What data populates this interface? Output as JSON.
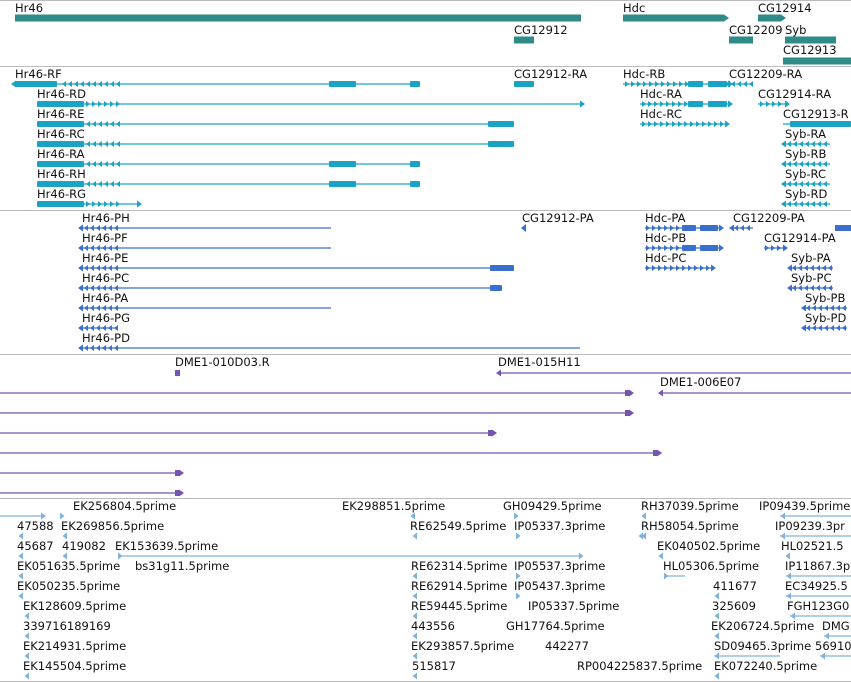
{
  "colors": {
    "gene": "#2e8b87",
    "transcript": "#1aa3c4",
    "protein": "#3a6fd0",
    "clone": "#7555b0",
    "est": "#7fb2df",
    "divider": "#bbbbbb"
  },
  "genes": [
    {
      "label": "Hr46"
    },
    {
      "label": "Hdc"
    },
    {
      "label": "CG12914"
    },
    {
      "label": "CG12912"
    },
    {
      "label": "CG12209"
    },
    {
      "label": "Syb"
    },
    {
      "label": "CG12913"
    }
  ],
  "transcripts": [
    {
      "label": "Hr46-RF"
    },
    {
      "label": "Hr46-RD"
    },
    {
      "label": "Hr46-RE"
    },
    {
      "label": "Hr46-RC"
    },
    {
      "label": "Hr46-RA"
    },
    {
      "label": "Hr46-RH"
    },
    {
      "label": "Hr46-RG"
    },
    {
      "label": "CG12912-RA"
    },
    {
      "label": "Hdc-RB"
    },
    {
      "label": "Hdc-RA"
    },
    {
      "label": "Hdc-RC"
    },
    {
      "label": "CG12209-RA"
    },
    {
      "label": "CG12914-RA"
    },
    {
      "label": "CG12913-R"
    },
    {
      "label": "Syb-RA"
    },
    {
      "label": "Syb-RB"
    },
    {
      "label": "Syb-RC"
    },
    {
      "label": "Syb-RD"
    }
  ],
  "proteins": [
    {
      "label": "Hr46-PH"
    },
    {
      "label": "Hr46-PF"
    },
    {
      "label": "Hr46-PE"
    },
    {
      "label": "Hr46-PC"
    },
    {
      "label": "Hr46-PA"
    },
    {
      "label": "Hr46-PG"
    },
    {
      "label": "Hr46-PD"
    },
    {
      "label": "CG12912-PA"
    },
    {
      "label": "Hdc-PA"
    },
    {
      "label": "Hdc-PB"
    },
    {
      "label": "Hdc-PC"
    },
    {
      "label": "CG12209-PA"
    },
    {
      "label": "CG12914-PA"
    },
    {
      "label": "Syb-PA"
    },
    {
      "label": "Syb-PC"
    },
    {
      "label": "Syb-PB"
    },
    {
      "label": "Syb-PD"
    }
  ],
  "clones": [
    {
      "label": "DME1-010D03.R"
    },
    {
      "label": "DME1-015H11"
    },
    {
      "label": "DME1-006E07"
    }
  ],
  "ests": [
    {
      "label": "EK256804.5prime"
    },
    {
      "label": "EK298851.5prime"
    },
    {
      "label": "GH09429.5prime"
    },
    {
      "label": "RH37039.5prime"
    },
    {
      "label": "IP09439.5prime"
    },
    {
      "label": "47588"
    },
    {
      "label": "EK269856.5prime"
    },
    {
      "label": "RE62549.5prime"
    },
    {
      "label": "IP05337.3prime"
    },
    {
      "label": "RH58054.5prime"
    },
    {
      "label": "IP09239.3pr"
    },
    {
      "label": "45687"
    },
    {
      "label": "419082"
    },
    {
      "label": "EK153639.5prime"
    },
    {
      "label": "EK040502.5prime"
    },
    {
      "label": "HL02521.5"
    },
    {
      "label": "EK051635.5prime"
    },
    {
      "label": "bs31g11.5prime"
    },
    {
      "label": "RE62314.5prime"
    },
    {
      "label": "IP05537.3prime"
    },
    {
      "label": "HL05306.5prime"
    },
    {
      "label": "IP11867.3p"
    },
    {
      "label": "EK050235.5prime"
    },
    {
      "label": "RE62914.5prime"
    },
    {
      "label": "IP05437.3prime"
    },
    {
      "label": "411677"
    },
    {
      "label": "EC34925.5"
    },
    {
      "label": "EK128609.5prime"
    },
    {
      "label": "RE59445.5prime"
    },
    {
      "label": "IP05337.5prime"
    },
    {
      "label": "325609"
    },
    {
      "label": "FGH123G0"
    },
    {
      "label": "339716189169"
    },
    {
      "label": "443556"
    },
    {
      "label": "GH17764.5prime"
    },
    {
      "label": "EK206724.5prime"
    },
    {
      "label": "DMG"
    },
    {
      "label": "EK214931.5prime"
    },
    {
      "label": "EK293857.5prime"
    },
    {
      "label": "442277"
    },
    {
      "label": "SD09465.3prime"
    },
    {
      "label": "56910"
    },
    {
      "label": "EK145504.5prime"
    },
    {
      "label": "515817"
    },
    {
      "label": "RP004225837.5prime"
    },
    {
      "label": "EK072240.5prime"
    }
  ]
}
